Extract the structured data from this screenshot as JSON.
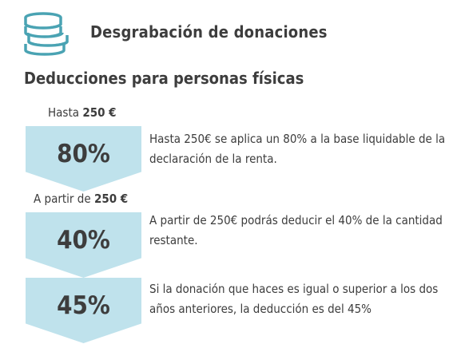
{
  "header": {
    "title": "Desgrabación de donaciones",
    "icon": "coins-stack-icon",
    "icon_color": "#4aa3b3"
  },
  "section": {
    "subtitle": "Deducciones para personas físicas"
  },
  "rows": [
    {
      "label_prefix": "Hasta",
      "label_amount": "250 €",
      "percent": "80%",
      "description": "Hasta 250€ se aplica un 80% a la base liquidable de la declaración de la renta."
    },
    {
      "label_prefix": "A partir de",
      "label_amount": "250 €",
      "percent": "40%",
      "description": "A partir de 250€ podrás deducir el 40% de la cantidad restante."
    },
    {
      "label_prefix": "",
      "label_amount": "",
      "percent": "45%",
      "description": "Si la donación que haces es igual o superior a los dos años anteriores, la deducción es del 45%"
    }
  ],
  "colors": {
    "chevron_fill": "#bfe2ec",
    "text": "#3d3d3d",
    "accent": "#4aa3b3"
  }
}
